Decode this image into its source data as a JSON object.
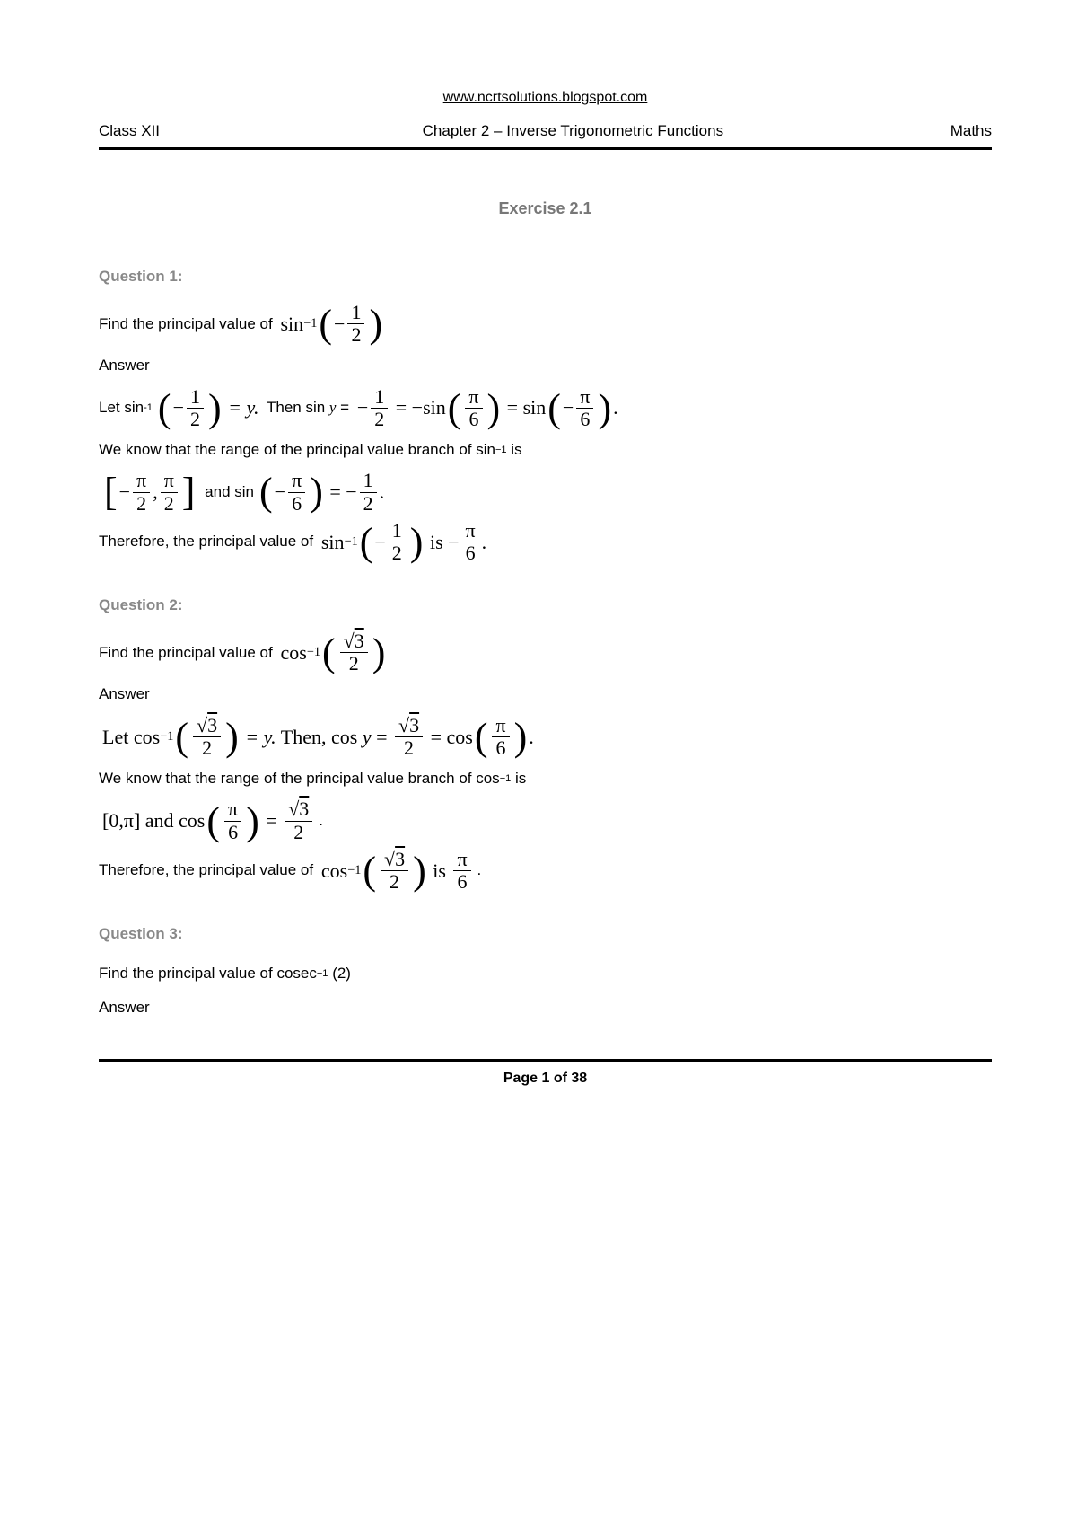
{
  "url": "www.ncrtsolutions.blogspot.com",
  "header": {
    "left": "Class XII",
    "center": "Chapter 2 – Inverse Trigonometric Functions",
    "right": "Maths"
  },
  "exercise": "Exercise 2.1",
  "q1": {
    "title": "Question 1:",
    "findText": "Find the principal value of ",
    "expr_fn": "sin",
    "expr_sup": "−1",
    "expr_neg": "−",
    "expr_num": "1",
    "expr_den": "2",
    "answerLabel": "Answer",
    "letPrefix": "Let sin",
    "letSup": "-1",
    "eq_y": " = y.",
    "thenText": " Then sin ",
    "y_var": "y",
    "eq": " = ",
    "neg": "−",
    "half_num": "1",
    "half_den": "2",
    "eqs": " = −sin",
    "pi6_num": "π",
    "pi6_den": "6",
    "eqs2": " = sin",
    "neg_pi6_num": "π",
    "neg_pi6_den": "6",
    "dot": ".",
    "rangeText": "We know that the range of the principal value branch of sin",
    "rangeSup": "−1",
    "rangeIs": " is",
    "br_neg": "−",
    "br_num1": "π",
    "br_den1": "2",
    "br_comma": ",",
    "br_num2": "π",
    "br_den2": "2",
    "andSin": " and sin",
    "andNeg": "−",
    "and_num": "π",
    "and_den": "6",
    "andEq": " = −",
    "and_rnum": "1",
    "and_rden": "2",
    "andDot": ".",
    "thereforeText": "Therefore, the principal value of ",
    "res_fn": "sin",
    "res_sup": "−1",
    "res_neg": "−",
    "res_num": "1",
    "res_den": "2",
    "res_is": " is −",
    "res_ans_num": "π",
    "res_ans_den": "6",
    "res_dot": "."
  },
  "q2": {
    "title": "Question 2:",
    "findText": "Find the principal value of ",
    "expr_fn": "cos",
    "expr_sup": "−1",
    "expr_sqrt": "√",
    "expr_num": "3",
    "expr_den": "2",
    "answerLabel": "Answer",
    "letFull": "Let cos",
    "letSup": "−1",
    "eq_y": " = y.",
    "thenFull": " Then, cos ",
    "y_var": "y",
    "eq": " = ",
    "sqrt": "√",
    "s_num": "3",
    "s_den": "2",
    "eqs": " = cos",
    "pi6_num": "π",
    "pi6_den": "6",
    "dot": ".",
    "rangeText": "We know that the range of the principal value branch of cos",
    "rangeSup": "−1",
    "rangeIs": " is",
    "br_l": "[",
    "br_0": "0,π",
    "br_r": "]",
    "andCos": " and cos",
    "and_num": "π",
    "and_den": "6",
    "andEq": " = ",
    "and_sqrt": "√",
    "and_rnum": "3",
    "and_rden": "2",
    "andDot": ".",
    "thereforeText": "Therefore, the principal value of ",
    "res_fn": "cos",
    "res_sup": "−1",
    "res_sqrt": "√",
    "res_num": "3",
    "res_den": "2",
    "res_is": " is ",
    "res_ans_num": "π",
    "res_ans_den": "6",
    "res_dot": "."
  },
  "q3": {
    "title": "Question 3:",
    "findText": "Find the principal value of cosec",
    "findSup": "−1",
    "findArg": " (2)",
    "answerLabel": "Answer"
  },
  "footer": {
    "page": "Page 1 of 38"
  },
  "colors": {
    "text": "#000000",
    "muted": "#888888",
    "bg": "#ffffff"
  }
}
